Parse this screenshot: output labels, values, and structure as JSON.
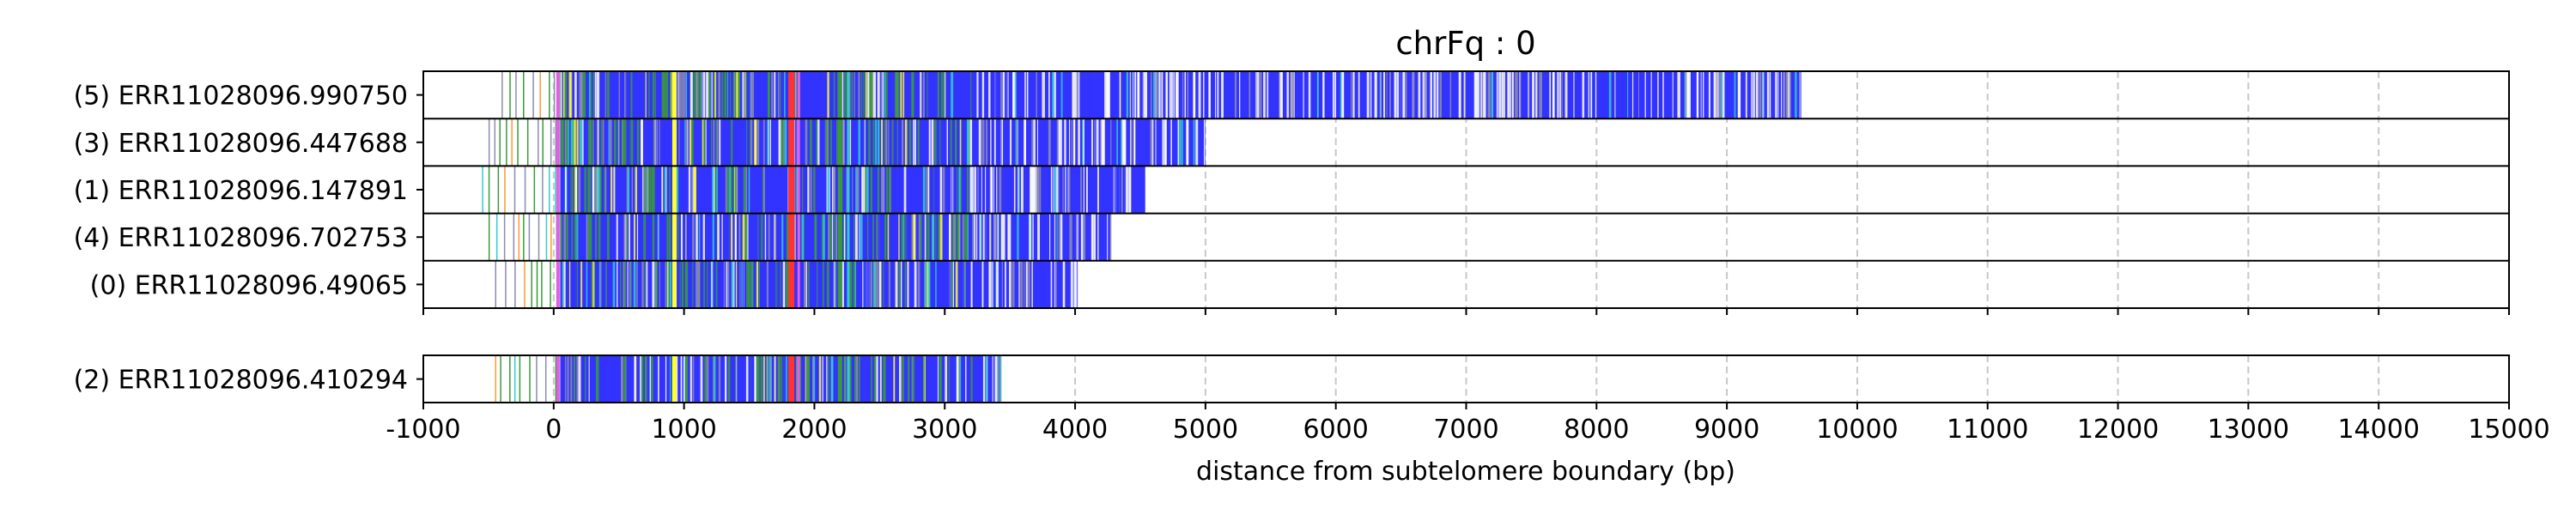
{
  "chart_data": {
    "type": "bar",
    "title": "chrFq : 0",
    "xlabel": "distance from subtelomere boundary (bp)",
    "ylabel": "",
    "xlim": [
      -1000,
      15000
    ],
    "x_ticks": [
      -1000,
      0,
      1000,
      2000,
      3000,
      4000,
      5000,
      6000,
      7000,
      8000,
      9000,
      10000,
      11000,
      12000,
      13000,
      14000,
      15000
    ],
    "x_tick_labels": [
      "-1000",
      "0",
      "1000",
      "2000",
      "3000",
      "4000",
      "5000",
      "6000",
      "7000",
      "8000",
      "9000",
      "10000",
      "11000",
      "12000",
      "13000",
      "14000",
      "15000"
    ],
    "grid": "x-dashed",
    "groups": [
      {
        "reads": [
          {
            "label": "(5) ERR11028096.990750",
            "start": -400,
            "end": 9570
          },
          {
            "label": "(3) ERR11028096.447688",
            "start": -500,
            "end": 5000
          },
          {
            "label": "(1) ERR11028096.147891",
            "start": -550,
            "end": 4540
          },
          {
            "label": "(4) ERR11028096.702753",
            "start": -500,
            "end": 4270
          },
          {
            "label": "(0) ERR11028096.49065",
            "start": -450,
            "end": 4020
          }
        ]
      },
      {
        "reads": [
          {
            "label": "(2) ERR11028096.410294",
            "start": -450,
            "end": 3430
          }
        ]
      }
    ],
    "dense_start": 50,
    "colors": {
      "main": "#3333ff",
      "green": "#3a9a3a",
      "yellow": "#ffff33",
      "red": "#ff3333",
      "pink": "#e060e0",
      "cyan": "#33cccc",
      "white": "#ffffff",
      "gray": "#8c8cb0",
      "orange": "#ff9933"
    }
  }
}
